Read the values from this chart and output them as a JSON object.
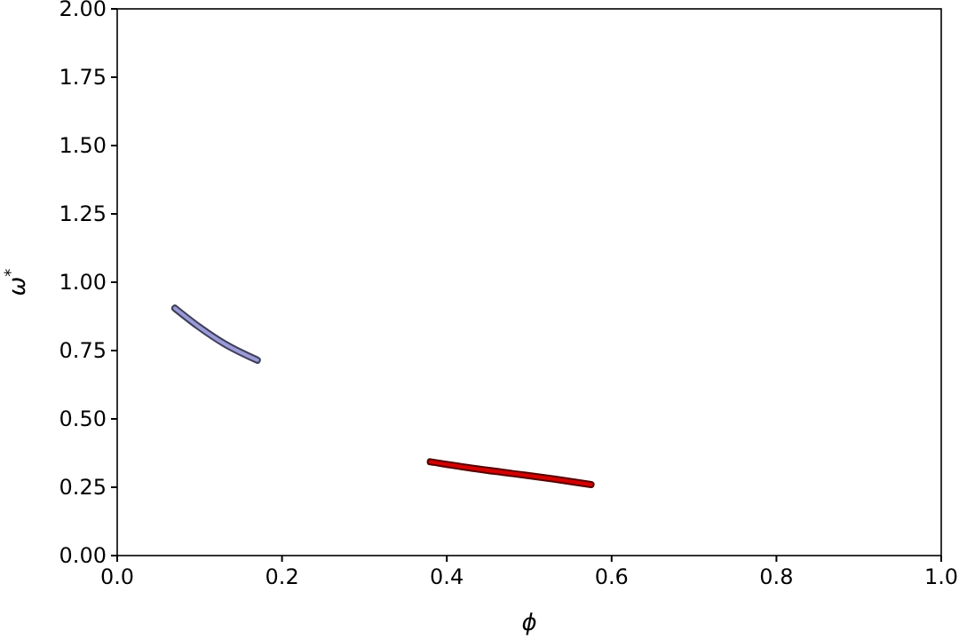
{
  "chart_data": {
    "type": "line",
    "xlabel": "ϕ",
    "ylabel": "ω$^{*}$",
    "xlim": [
      0,
      1
    ],
    "ylim": [
      0,
      2
    ],
    "xticks": [
      {
        "value": 0,
        "label": "0.0"
      },
      {
        "value": 0.2,
        "label": "0.2"
      },
      {
        "value": 0.4,
        "label": "0.4"
      },
      {
        "value": 0.6,
        "label": "0.6"
      },
      {
        "value": 0.8,
        "label": "0.8"
      },
      {
        "value": 1,
        "label": "1.0"
      }
    ],
    "yticks": [
      {
        "value": 0,
        "label": "0.00"
      },
      {
        "value": 0.25,
        "label": "0.25"
      },
      {
        "value": 0.5,
        "label": "0.50"
      },
      {
        "value": 0.75,
        "label": "0.75"
      },
      {
        "value": 1,
        "label": "1.00"
      },
      {
        "value": 1.25,
        "label": "1.25"
      },
      {
        "value": 1.5,
        "label": "1.50"
      },
      {
        "value": 1.75,
        "label": "1.75"
      },
      {
        "value": 2,
        "label": "2.00"
      }
    ],
    "series": [
      {
        "color": "#9a9ad8",
        "x": [
          0.07,
          0.1,
          0.13,
          0.17
        ],
        "values": [
          0.905,
          0.835,
          0.775,
          0.715
        ]
      },
      {
        "color": "#d40000",
        "x": [
          0.38,
          0.43,
          0.48,
          0.53,
          0.575
        ],
        "values": [
          0.343,
          0.32,
          0.3,
          0.28,
          0.26
        ]
      }
    ]
  }
}
